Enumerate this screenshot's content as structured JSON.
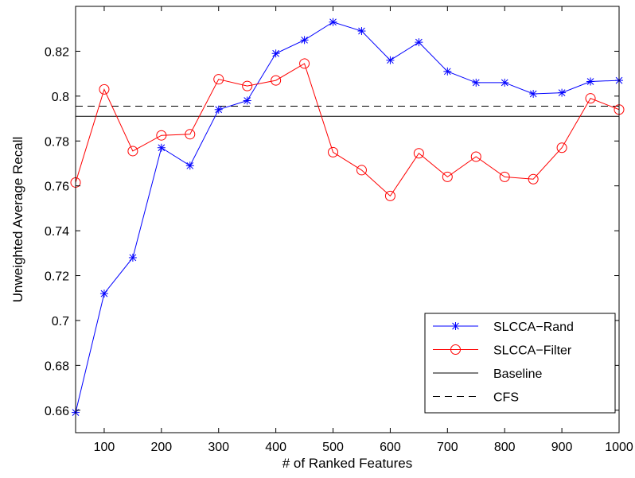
{
  "chart_data": {
    "type": "line",
    "title": "",
    "xlabel": "# of Ranked Features",
    "ylabel": "Unweighted Average Recall",
    "xlim": [
      50,
      1000
    ],
    "ylim": [
      0.65,
      0.84
    ],
    "xticks": [
      100,
      200,
      300,
      400,
      500,
      600,
      700,
      800,
      900,
      1000
    ],
    "xtick_labels": [
      "100",
      "200",
      "300",
      "400",
      "500",
      "600",
      "700",
      "800",
      "900",
      "1000"
    ],
    "yticks": [
      0.66,
      0.68,
      0.7,
      0.72,
      0.74,
      0.76,
      0.78,
      0.8,
      0.82
    ],
    "ytick_labels": [
      "0.66",
      "0.68",
      "0.7",
      "0.72",
      "0.74",
      "0.76",
      "0.78",
      "0.8",
      "0.82"
    ],
    "grid": false,
    "legend_position": "bottom-right",
    "x": [
      50,
      100,
      150,
      200,
      250,
      300,
      350,
      400,
      450,
      500,
      550,
      600,
      650,
      700,
      750,
      800,
      850,
      900,
      950,
      1000
    ],
    "series": [
      {
        "name": "SLCCA−Rand",
        "color": "#0000ff",
        "marker": "asterisk",
        "values": [
          0.659,
          0.712,
          0.728,
          0.777,
          0.769,
          0.794,
          0.798,
          0.819,
          0.825,
          0.833,
          0.829,
          0.816,
          0.824,
          0.811,
          0.806,
          0.806,
          0.801,
          0.8015,
          0.8065,
          0.807
        ]
      },
      {
        "name": "SLCCA−Filter",
        "color": "#ff0000",
        "marker": "circle",
        "values": [
          0.7615,
          0.803,
          0.7755,
          0.7825,
          0.783,
          0.8075,
          0.8045,
          0.807,
          0.8145,
          0.775,
          0.767,
          0.7555,
          0.7745,
          0.764,
          0.773,
          0.764,
          0.763,
          0.777,
          0.799,
          0.794
        ]
      }
    ],
    "reference_lines": [
      {
        "name": "Baseline",
        "value": 0.791,
        "color": "#000000",
        "style": "solid"
      },
      {
        "name": "CFS",
        "value": 0.7955,
        "color": "#000000",
        "style": "dashed"
      }
    ]
  }
}
